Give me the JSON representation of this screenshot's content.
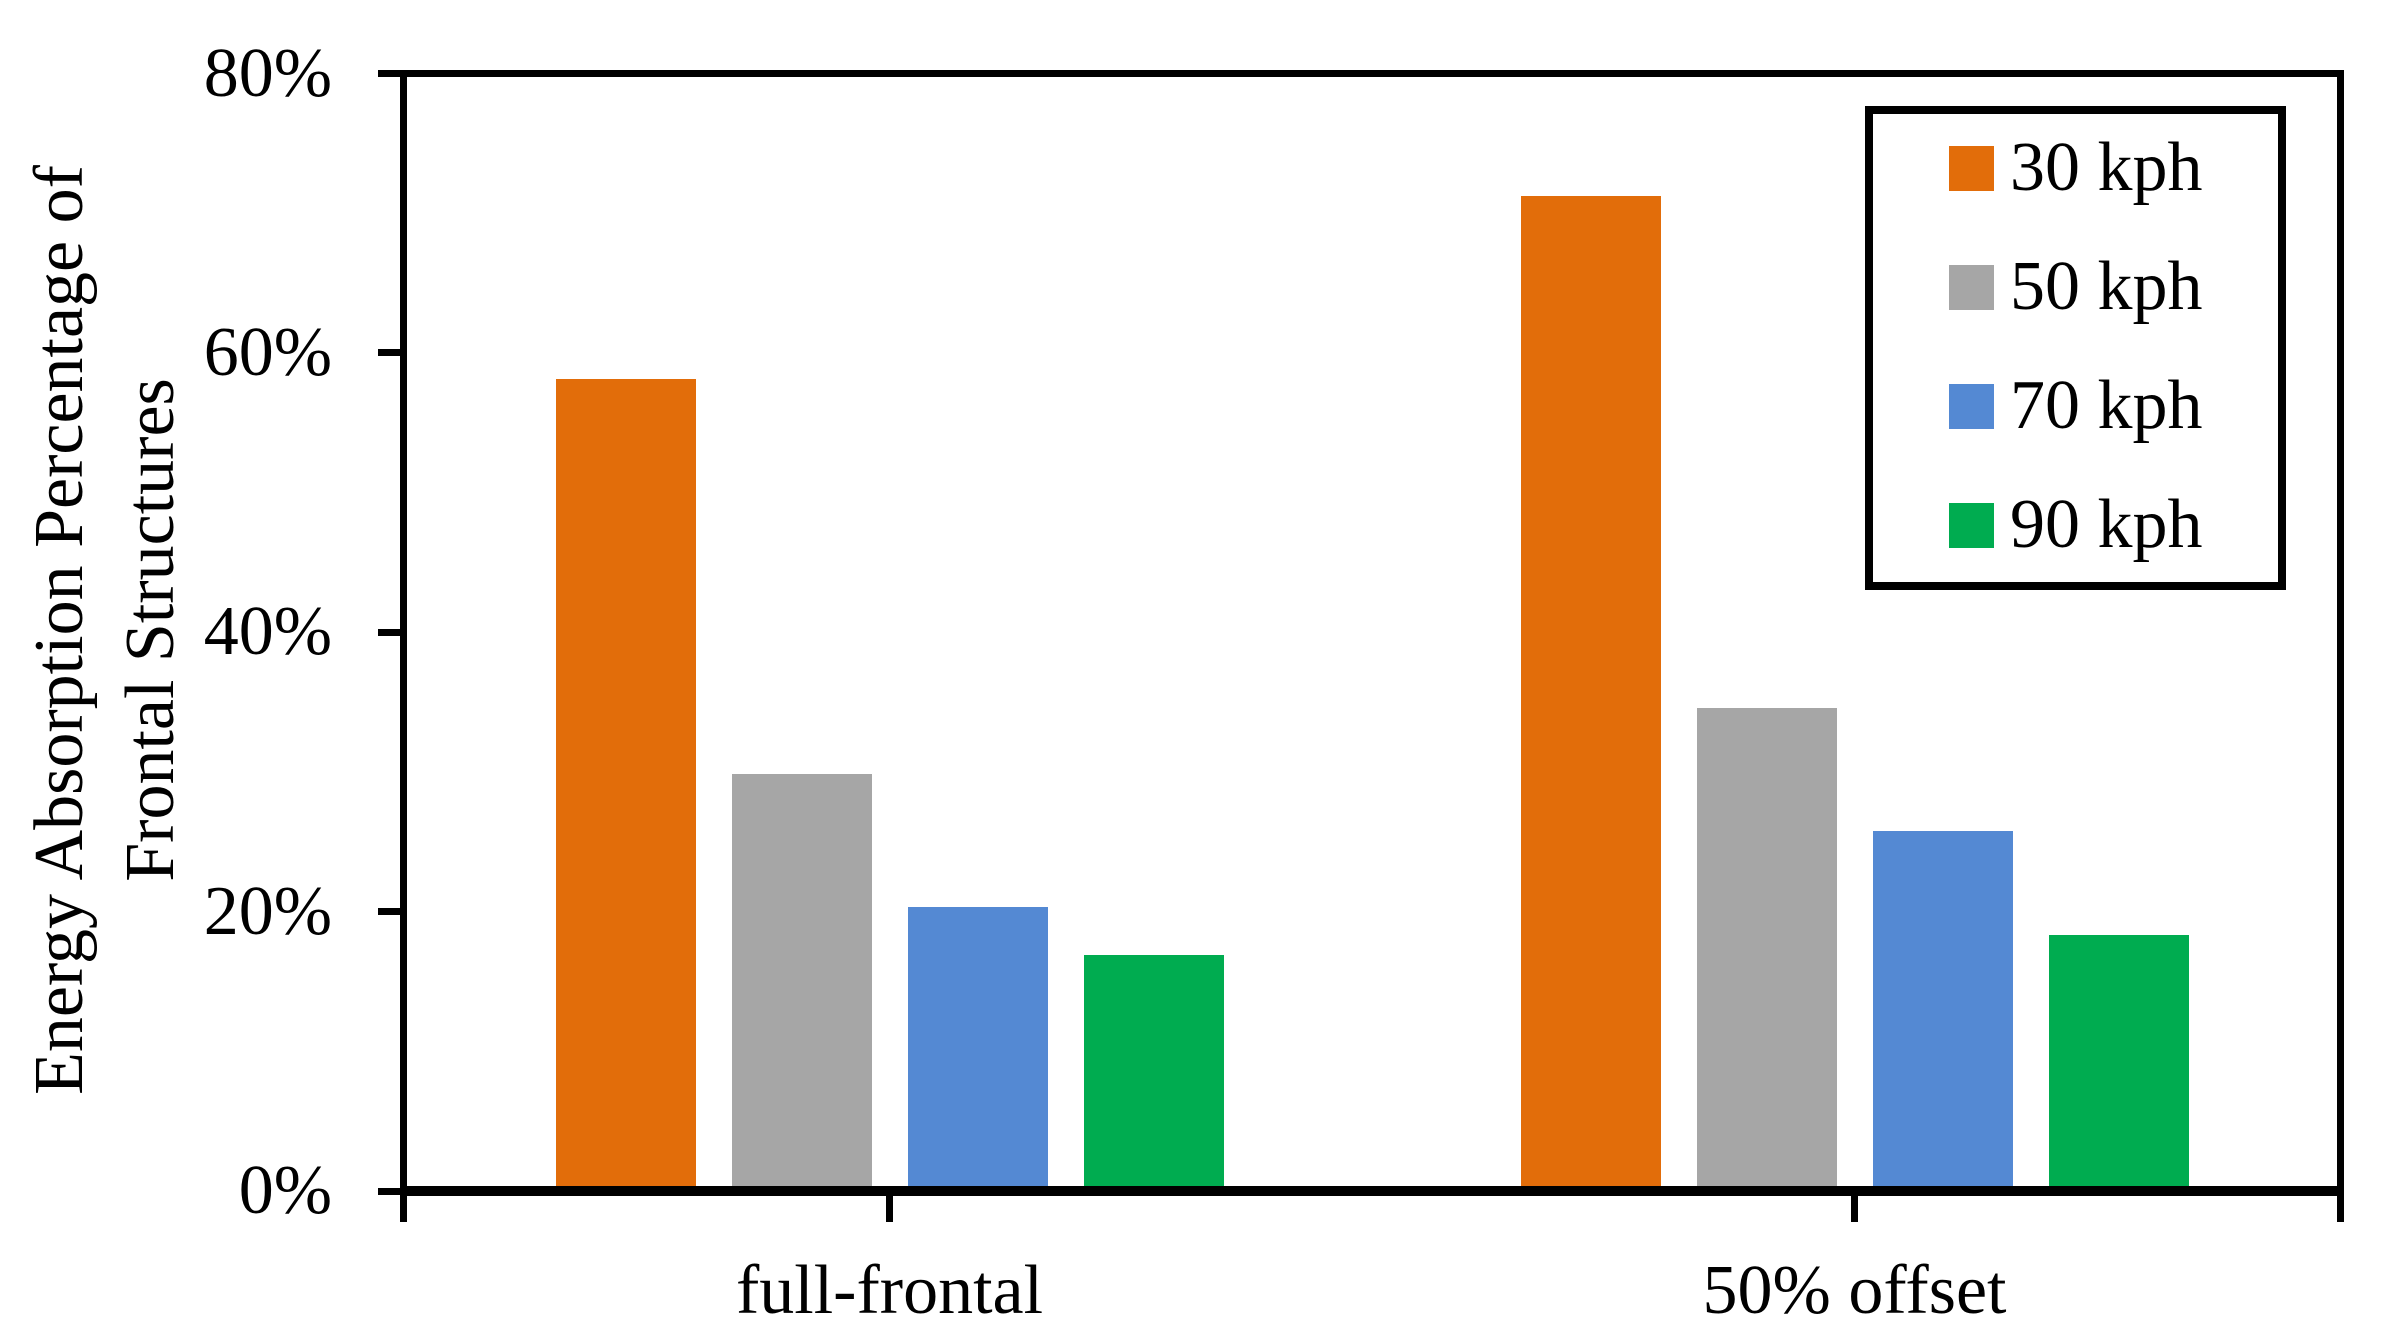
{
  "figure": {
    "background": "#ffffff",
    "axis_color": "#000000"
  },
  "chart_data": {
    "type": "bar",
    "title": "",
    "categories": [
      "full-frontal",
      "50% offset"
    ],
    "series": [
      {
        "name": "30 kph",
        "color": "#E26D0A",
        "values": [
          58.2,
          71.4
        ]
      },
      {
        "name": "50 kph",
        "color": "#A6A6A6",
        "values": [
          29.7,
          34.5
        ]
      },
      {
        "name": "70 kph",
        "color": "#5489D3",
        "values": [
          20.1,
          25.6
        ]
      },
      {
        "name": "90 kph",
        "color": "#00AC50",
        "values": [
          16.7,
          18.1
        ]
      }
    ],
    "ylabel": "Energy Absorption Percentage of Frontal Structures",
    "ylabel_lines": [
      "Energy Absorption Percentage of",
      "Frontal Structures"
    ],
    "xlabel": "",
    "yticks": [
      {
        "label": "0%",
        "value": 0
      },
      {
        "label": "20%",
        "value": 20
      },
      {
        "label": "40%",
        "value": 40
      },
      {
        "label": "60%",
        "value": 60
      },
      {
        "label": "80%",
        "value": 80
      }
    ],
    "ylim": [
      0,
      80
    ],
    "grid": false,
    "legend": {
      "position": "top-right",
      "entries": [
        "30 kph",
        "50 kph",
        "70 kph",
        "90 kph"
      ]
    }
  }
}
